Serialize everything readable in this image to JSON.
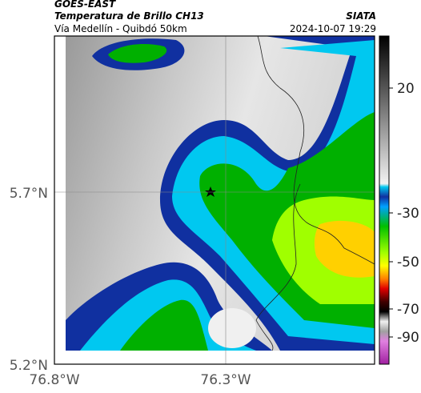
{
  "header": {
    "title": "GOES-EAST",
    "subtitle": "Temperatura de Brillo CH13",
    "location": "Vía Medellín - Quibdó 50km",
    "source": "SIATA",
    "datetime": "2024-10-07 19:29"
  },
  "map": {
    "lat_labels": [
      "5.7°N",
      "5.2°N"
    ],
    "lon_labels": [
      "76.8°W",
      "76.3°W"
    ]
  },
  "colorbar": {
    "ticks": [
      20,
      -30,
      -50,
      -70,
      -90
    ]
  }
}
